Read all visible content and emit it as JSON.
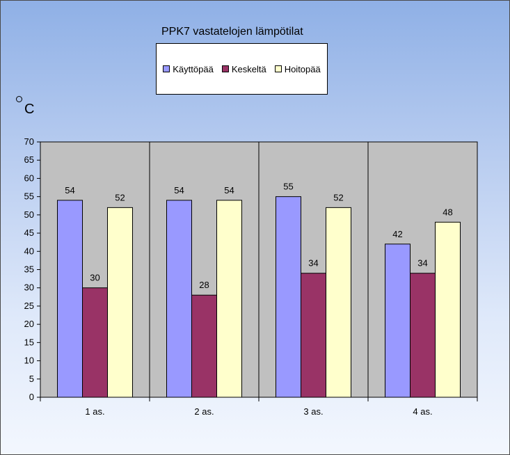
{
  "chart_data": {
    "type": "bar",
    "title": "PPK7 vastatelojen lämpötilat",
    "ylabel_degree_symbol": "°",
    "ylabel": "C",
    "categories": [
      "1 as.",
      "2 as.",
      "3 as.",
      "4 as."
    ],
    "series": [
      {
        "name": "Käyttöpää",
        "values": [
          54,
          54,
          55,
          42
        ],
        "color": "#9999ff"
      },
      {
        "name": "Keskeltä",
        "values": [
          30,
          28,
          34,
          34
        ],
        "color": "#993366"
      },
      {
        "name": "Hoitopää",
        "values": [
          52,
          54,
          52,
          48
        ],
        "color": "#ffffcc"
      }
    ],
    "ylim": [
      0,
      70
    ],
    "ytick_step": 5,
    "yticks": [
      "0",
      "5",
      "10",
      "15",
      "20",
      "25",
      "30",
      "35",
      "40",
      "45",
      "50",
      "55",
      "60",
      "65",
      "70"
    ],
    "data_labels": true,
    "legend_position": "top",
    "plot_background": "#c0c0c0",
    "grid": false
  }
}
